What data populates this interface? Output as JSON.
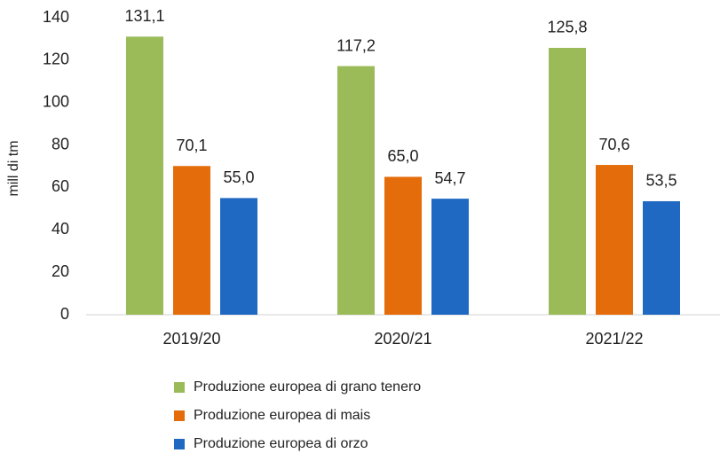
{
  "chart_data": {
    "type": "bar",
    "ylabel": "mill di tm",
    "categories": [
      "2019/20",
      "2020/21",
      "2021/22"
    ],
    "series": [
      {
        "name": "Produzione europea di grano tenero",
        "color": "#9bbb59",
        "values": [
          131.1,
          117.2,
          125.8
        ],
        "value_labels": [
          "131,1",
          "117,2",
          "125,8"
        ]
      },
      {
        "name": "Produzione europea di mais",
        "color": "#e46c0a",
        "values": [
          70.1,
          65.0,
          70.6
        ],
        "value_labels": [
          "70,1",
          "65,0",
          "70,6"
        ]
      },
      {
        "name": "Produzione europea di orzo",
        "color": "#1f69c3",
        "values": [
          55.0,
          54.7,
          53.5
        ],
        "value_labels": [
          "55,0",
          "54,7",
          "53,5"
        ]
      }
    ],
    "ylim": [
      0,
      140
    ],
    "yticks": [
      0,
      20,
      40,
      60,
      80,
      100,
      120,
      140
    ],
    "grid": false,
    "legend": "bottom"
  }
}
